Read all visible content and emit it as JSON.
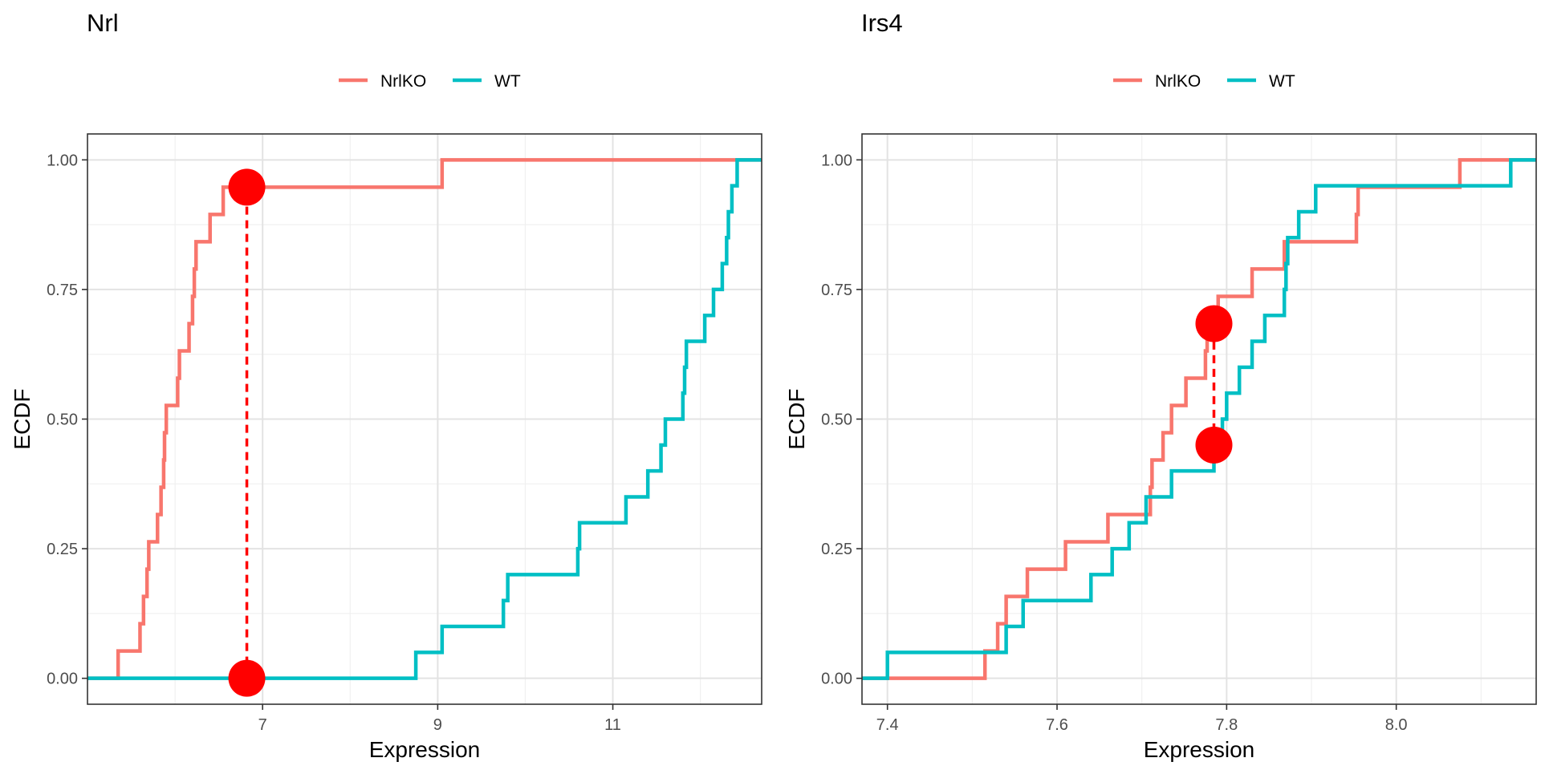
{
  "chart_data": [
    {
      "type": "line",
      "step": "ecdf",
      "title": "Nrl",
      "xlabel": "Expression",
      "ylabel": "ECDF",
      "xlim": [
        5.0,
        12.7
      ],
      "ylim": [
        -0.05,
        1.05
      ],
      "x_ticks": [
        7,
        9,
        11
      ],
      "y_ticks": [
        0.0,
        0.25,
        0.5,
        0.75,
        1.0
      ],
      "y_tick_labels": [
        "0.00",
        "0.25",
        "0.50",
        "0.75",
        "1.00"
      ],
      "x_tick_labels": [
        "7",
        "9",
        "11"
      ],
      "grid": true,
      "legend_position": "top",
      "series": [
        {
          "name": "NrlKO",
          "color": "#F8766D",
          "points": [
            [
              5.0,
              0.0
            ],
            [
              5.35,
              0.0526
            ],
            [
              5.6,
              0.1053
            ],
            [
              5.64,
              0.1579
            ],
            [
              5.68,
              0.2105
            ],
            [
              5.7,
              0.2632
            ],
            [
              5.8,
              0.3158
            ],
            [
              5.84,
              0.3684
            ],
            [
              5.87,
              0.4211
            ],
            [
              5.88,
              0.4737
            ],
            [
              5.9,
              0.5263
            ],
            [
              6.03,
              0.5789
            ],
            [
              6.05,
              0.6316
            ],
            [
              6.16,
              0.6842
            ],
            [
              6.2,
              0.7368
            ],
            [
              6.22,
              0.7895
            ],
            [
              6.24,
              0.8421
            ],
            [
              6.4,
              0.8947
            ],
            [
              6.55,
              0.9474
            ],
            [
              9.05,
              1.0
            ],
            [
              12.7,
              1.0
            ]
          ]
        },
        {
          "name": "WT",
          "color": "#00BFC4",
          "points": [
            [
              5.0,
              0.0
            ],
            [
              8.75,
              0.05
            ],
            [
              9.05,
              0.1
            ],
            [
              9.75,
              0.15
            ],
            [
              9.8,
              0.2
            ],
            [
              10.6,
              0.25
            ],
            [
              10.62,
              0.3
            ],
            [
              11.15,
              0.35
            ],
            [
              11.4,
              0.4
            ],
            [
              11.55,
              0.45
            ],
            [
              11.6,
              0.5
            ],
            [
              11.8,
              0.55
            ],
            [
              11.82,
              0.6
            ],
            [
              11.84,
              0.65
            ],
            [
              12.05,
              0.7
            ],
            [
              12.15,
              0.75
            ],
            [
              12.25,
              0.8
            ],
            [
              12.3,
              0.85
            ],
            [
              12.32,
              0.9
            ],
            [
              12.36,
              0.95
            ],
            [
              12.42,
              1.0
            ],
            [
              12.7,
              1.0
            ]
          ]
        }
      ],
      "max_distance_marker": {
        "x": 6.82,
        "y_from": 0.0,
        "y_to": 0.9474,
        "color": "#FF0000"
      }
    },
    {
      "type": "line",
      "step": "ecdf",
      "title": "Irs4",
      "xlabel": "Expression",
      "ylabel": "ECDF",
      "xlim": [
        7.37,
        8.165
      ],
      "ylim": [
        -0.05,
        1.05
      ],
      "x_ticks": [
        7.4,
        7.6,
        7.8,
        8.0
      ],
      "x_tick_labels": [
        "7.4",
        "7.6",
        "7.8",
        "8.0"
      ],
      "y_ticks": [
        0.0,
        0.25,
        0.5,
        0.75,
        1.0
      ],
      "y_tick_labels": [
        "0.00",
        "0.25",
        "0.50",
        "0.75",
        "1.00"
      ],
      "grid": true,
      "legend_position": "top",
      "series": [
        {
          "name": "NrlKO",
          "color": "#F8766D",
          "points": [
            [
              7.37,
              0.0
            ],
            [
              7.515,
              0.0526
            ],
            [
              7.53,
              0.1053
            ],
            [
              7.54,
              0.1579
            ],
            [
              7.565,
              0.2105
            ],
            [
              7.61,
              0.2632
            ],
            [
              7.66,
              0.3158
            ],
            [
              7.71,
              0.3684
            ],
            [
              7.712,
              0.4211
            ],
            [
              7.725,
              0.4737
            ],
            [
              7.735,
              0.5263
            ],
            [
              7.752,
              0.5789
            ],
            [
              7.775,
              0.6316
            ],
            [
              7.777,
              0.6842
            ],
            [
              7.79,
              0.7368
            ],
            [
              7.83,
              0.7895
            ],
            [
              7.868,
              0.8421
            ],
            [
              7.953,
              0.8947
            ],
            [
              7.955,
              0.9474
            ],
            [
              8.075,
              1.0
            ],
            [
              8.165,
              1.0
            ]
          ]
        },
        {
          "name": "WT",
          "color": "#00BFC4",
          "points": [
            [
              7.37,
              0.0
            ],
            [
              7.4,
              0.05
            ],
            [
              7.54,
              0.1
            ],
            [
              7.56,
              0.15
            ],
            [
              7.64,
              0.2
            ],
            [
              7.665,
              0.25
            ],
            [
              7.685,
              0.3
            ],
            [
              7.705,
              0.35
            ],
            [
              7.735,
              0.4
            ],
            [
              7.785,
              0.45
            ],
            [
              7.795,
              0.5
            ],
            [
              7.8,
              0.55
            ],
            [
              7.815,
              0.6
            ],
            [
              7.83,
              0.65
            ],
            [
              7.845,
              0.7
            ],
            [
              7.868,
              0.75
            ],
            [
              7.87,
              0.8
            ],
            [
              7.872,
              0.85
            ],
            [
              7.885,
              0.9
            ],
            [
              7.905,
              0.95
            ],
            [
              8.135,
              1.0
            ],
            [
              8.165,
              1.0
            ]
          ]
        }
      ],
      "max_distance_marker": {
        "x": 7.785,
        "y_from": 0.45,
        "y_to": 0.6842,
        "color": "#FF0000"
      }
    }
  ]
}
